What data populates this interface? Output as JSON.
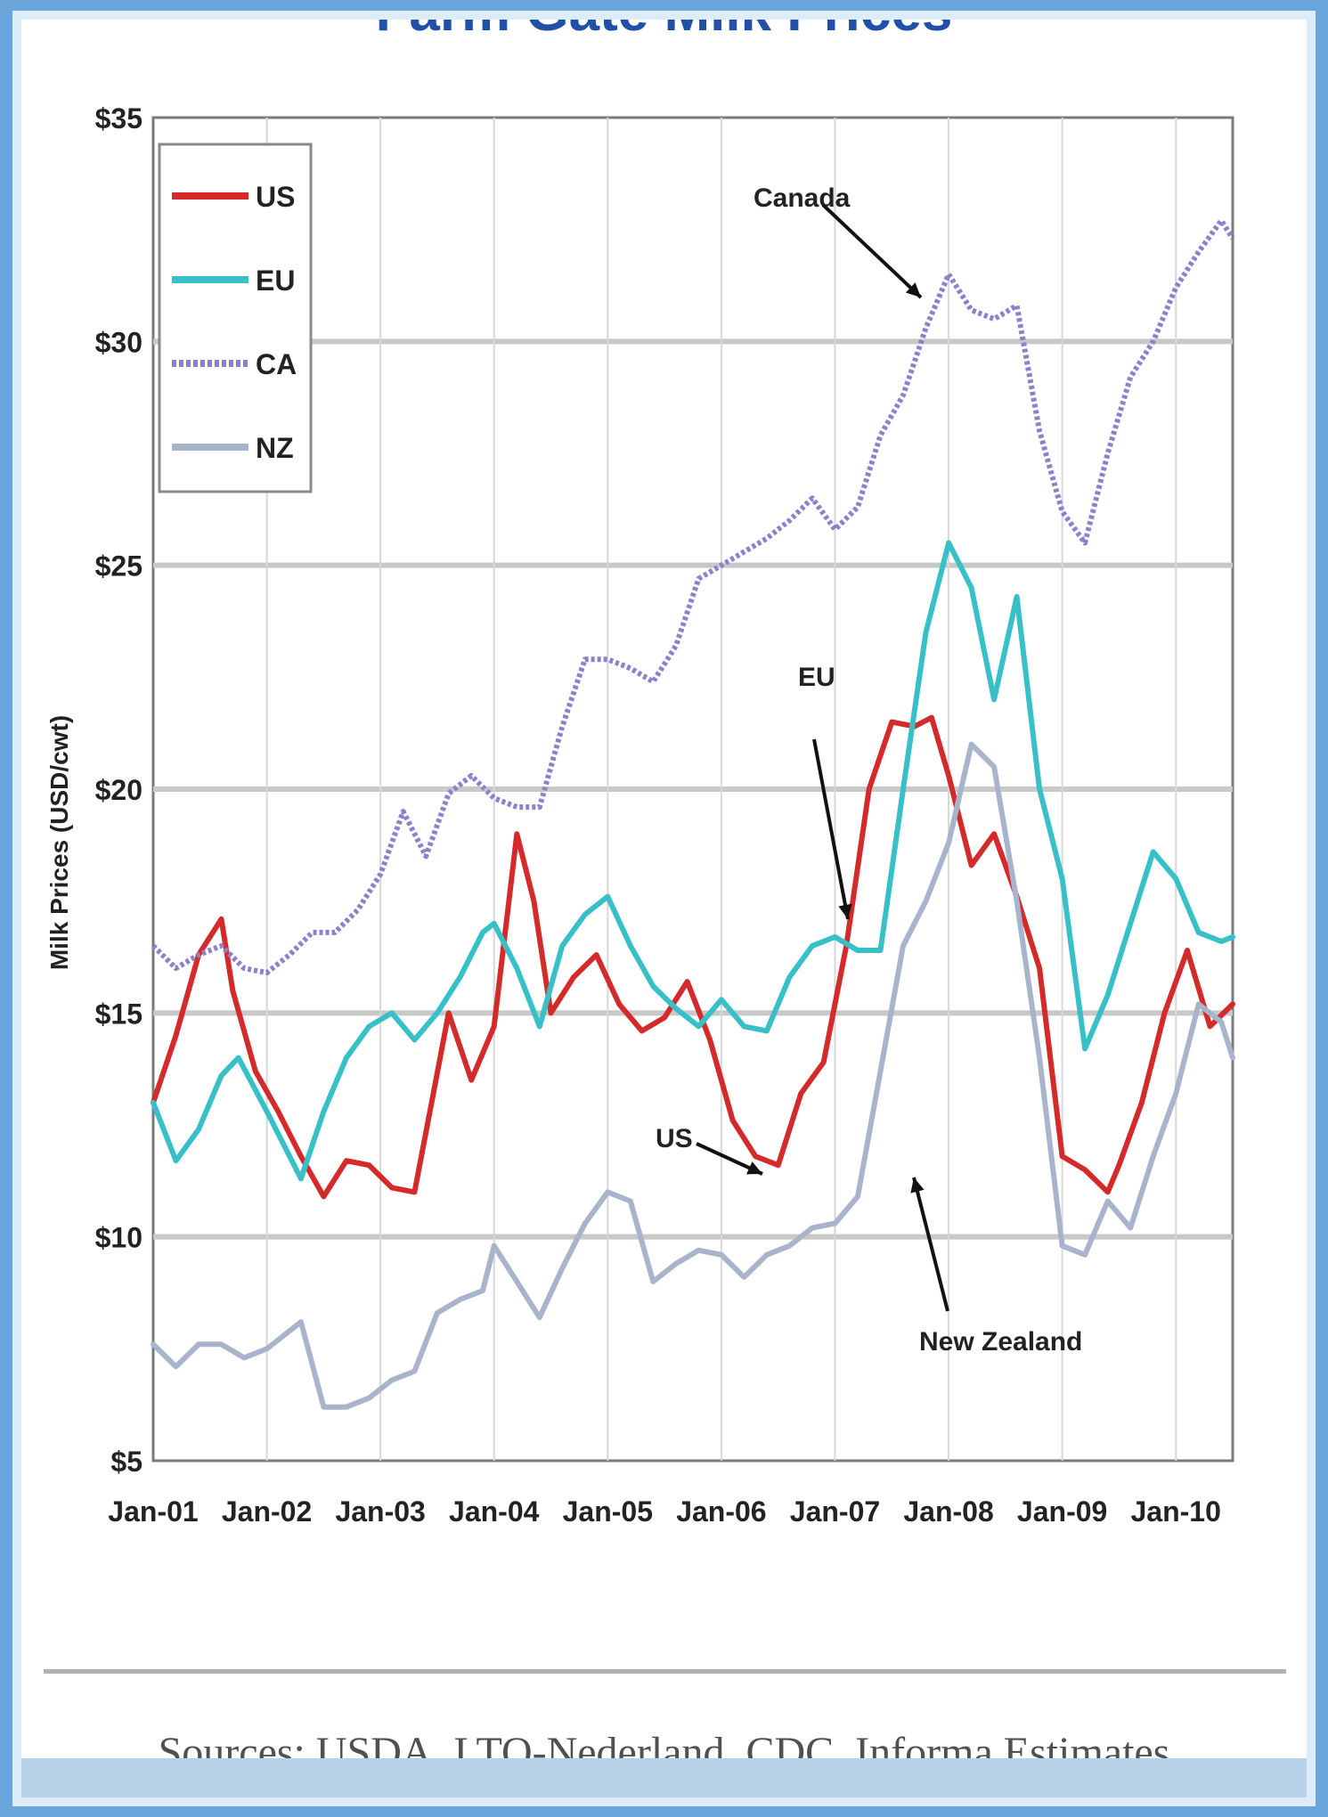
{
  "title": "Farm Gate Milk Prices",
  "source": "Sources: USDA, LTO-Nederland, CDC, Informa Estimates",
  "chart_data": {
    "type": "line",
    "title": "Farm Gate Milk Prices",
    "ylabel": "Milk Prices (USD/cwt)",
    "xlabel": "",
    "ylim": [
      5,
      35
    ],
    "xlim": [
      2001.0,
      2010.5
    ],
    "yticks": [
      {
        "value": 35,
        "label": "$35"
      },
      {
        "value": 30,
        "label": "$30"
      },
      {
        "value": 25,
        "label": "$25"
      },
      {
        "value": 20,
        "label": "$20"
      },
      {
        "value": 15,
        "label": "$15"
      },
      {
        "value": 10,
        "label": "$10"
      },
      {
        "value": 5,
        "label": "$5"
      }
    ],
    "xticks": [
      {
        "value": 2001,
        "label": "Jan-01"
      },
      {
        "value": 2002,
        "label": "Jan-02"
      },
      {
        "value": 2003,
        "label": "Jan-03"
      },
      {
        "value": 2004,
        "label": "Jan-04"
      },
      {
        "value": 2005,
        "label": "Jan-05"
      },
      {
        "value": 2006,
        "label": "Jan-06"
      },
      {
        "value": 2007,
        "label": "Jan-07"
      },
      {
        "value": 2008,
        "label": "Jan-08"
      },
      {
        "value": 2009,
        "label": "Jan-09"
      },
      {
        "value": 2010,
        "label": "Jan-10"
      }
    ],
    "grid": true,
    "legend_position": "top-left",
    "series": [
      {
        "name": "US",
        "color": "#d42a2a",
        "style": "solid",
        "x": [
          2001.0,
          2001.2,
          2001.4,
          2001.6,
          2001.7,
          2001.9,
          2002.1,
          2002.3,
          2002.5,
          2002.7,
          2002.9,
          2003.1,
          2003.3,
          2003.45,
          2003.6,
          2003.8,
          2004.0,
          2004.2,
          2004.35,
          2004.5,
          2004.7,
          2004.9,
          2005.1,
          2005.3,
          2005.5,
          2005.7,
          2005.9,
          2006.1,
          2006.3,
          2006.5,
          2006.7,
          2006.9,
          2007.1,
          2007.3,
          2007.5,
          2007.7,
          2007.85,
          2008.0,
          2008.2,
          2008.4,
          2008.6,
          2008.8,
          2009.0,
          2009.2,
          2009.4,
          2009.5,
          2009.7,
          2009.9,
          2010.1,
          2010.3,
          2010.5
        ],
        "y": [
          13,
          14.5,
          16.3,
          17.1,
          15.5,
          13.7,
          12.8,
          11.8,
          10.9,
          11.7,
          11.6,
          11.1,
          11.0,
          13.0,
          15.0,
          13.5,
          14.7,
          19.0,
          17.5,
          15.0,
          15.8,
          16.3,
          15.2,
          14.6,
          14.9,
          15.7,
          14.4,
          12.6,
          11.8,
          11.6,
          13.2,
          13.9,
          16.5,
          20.0,
          21.5,
          21.4,
          21.6,
          20.3,
          18.3,
          19.0,
          17.6,
          16.0,
          11.8,
          11.5,
          11.0,
          11.6,
          13.0,
          15.0,
          16.4,
          14.7,
          15.2
        ]
      },
      {
        "name": "EU",
        "color": "#38c0c8",
        "style": "solid",
        "x": [
          2001.0,
          2001.2,
          2001.4,
          2001.6,
          2001.75,
          2002.0,
          2002.3,
          2002.5,
          2002.7,
          2002.9,
          2003.1,
          2003.3,
          2003.5,
          2003.7,
          2003.9,
          2004.0,
          2004.2,
          2004.4,
          2004.6,
          2004.8,
          2005.0,
          2005.2,
          2005.4,
          2005.6,
          2005.8,
          2006.0,
          2006.2,
          2006.4,
          2006.6,
          2006.8,
          2007.0,
          2007.2,
          2007.4,
          2007.6,
          2007.8,
          2008.0,
          2008.2,
          2008.4,
          2008.6,
          2008.8,
          2009.0,
          2009.2,
          2009.4,
          2009.6,
          2009.8,
          2010.0,
          2010.2,
          2010.4,
          2010.5
        ],
        "y": [
          13,
          11.7,
          12.4,
          13.6,
          14.0,
          12.8,
          11.3,
          12.8,
          14.0,
          14.7,
          15.0,
          14.4,
          15.0,
          15.8,
          16.8,
          17.0,
          16.0,
          14.7,
          16.5,
          17.2,
          17.6,
          16.5,
          15.6,
          15.1,
          14.7,
          15.3,
          14.7,
          14.6,
          15.8,
          16.5,
          16.7,
          16.4,
          16.4,
          20.0,
          23.5,
          25.5,
          24.5,
          22.0,
          24.3,
          20.0,
          18.0,
          14.2,
          15.4,
          17.0,
          18.6,
          18.0,
          16.8,
          16.6,
          16.7
        ]
      },
      {
        "name": "CA",
        "color": "#8c82cc",
        "style": "dotted",
        "x": [
          2001.0,
          2001.2,
          2001.4,
          2001.6,
          2001.8,
          2002.0,
          2002.2,
          2002.4,
          2002.6,
          2002.8,
          2003.0,
          2003.2,
          2003.4,
          2003.6,
          2003.8,
          2004.0,
          2004.2,
          2004.4,
          2004.6,
          2004.8,
          2005.0,
          2005.2,
          2005.4,
          2005.6,
          2005.8,
          2006.0,
          2006.2,
          2006.4,
          2006.6,
          2006.8,
          2007.0,
          2007.2,
          2007.4,
          2007.6,
          2007.8,
          2008.0,
          2008.2,
          2008.4,
          2008.6,
          2008.8,
          2009.0,
          2009.2,
          2009.4,
          2009.6,
          2009.8,
          2010.0,
          2010.2,
          2010.4,
          2010.5
        ],
        "y": [
          16.5,
          16.0,
          16.3,
          16.5,
          16.0,
          15.9,
          16.3,
          16.8,
          16.8,
          17.3,
          18.1,
          19.5,
          18.5,
          19.9,
          20.3,
          19.8,
          19.6,
          19.6,
          21.4,
          22.9,
          22.9,
          22.7,
          22.4,
          23.2,
          24.7,
          25.0,
          25.3,
          25.6,
          26.0,
          26.5,
          25.8,
          26.3,
          27.9,
          28.8,
          30.3,
          31.5,
          30.7,
          30.5,
          30.8,
          28.0,
          26.2,
          25.5,
          27.5,
          29.2,
          30.0,
          31.2,
          32.0,
          32.7,
          32.3
        ]
      },
      {
        "name": "NZ",
        "color": "#a8b4cc",
        "style": "solid",
        "x": [
          2001.0,
          2001.2,
          2001.4,
          2001.6,
          2001.8,
          2002.0,
          2002.3,
          2002.5,
          2002.7,
          2002.9,
          2003.1,
          2003.3,
          2003.5,
          2003.7,
          2003.9,
          2004.0,
          2004.2,
          2004.4,
          2004.6,
          2004.8,
          2005.0,
          2005.2,
          2005.4,
          2005.6,
          2005.8,
          2006.0,
          2006.2,
          2006.4,
          2006.6,
          2006.8,
          2007.0,
          2007.2,
          2007.4,
          2007.6,
          2007.8,
          2008.0,
          2008.2,
          2008.4,
          2008.6,
          2008.8,
          2009.0,
          2009.2,
          2009.4,
          2009.6,
          2009.8,
          2010.0,
          2010.2,
          2010.4,
          2010.5
        ],
        "y": [
          7.6,
          7.1,
          7.6,
          7.6,
          7.3,
          7.5,
          8.1,
          6.2,
          6.2,
          6.4,
          6.8,
          7.0,
          8.3,
          8.6,
          8.8,
          9.8,
          9.0,
          8.2,
          9.3,
          10.3,
          11.0,
          10.8,
          9.0,
          9.4,
          9.7,
          9.6,
          9.1,
          9.6,
          9.8,
          10.2,
          10.3,
          10.9,
          13.7,
          16.5,
          17.5,
          18.8,
          21.0,
          20.5,
          17.5,
          14.0,
          9.8,
          9.6,
          10.8,
          10.2,
          11.8,
          13.2,
          15.2,
          14.8,
          14.0
        ]
      }
    ],
    "annotations": [
      {
        "text": "Canada",
        "target_series": "CA"
      },
      {
        "text": "EU",
        "target_series": "EU"
      },
      {
        "text": "US",
        "target_series": "US"
      },
      {
        "text": "New Zealand",
        "target_series": "NZ"
      }
    ]
  }
}
